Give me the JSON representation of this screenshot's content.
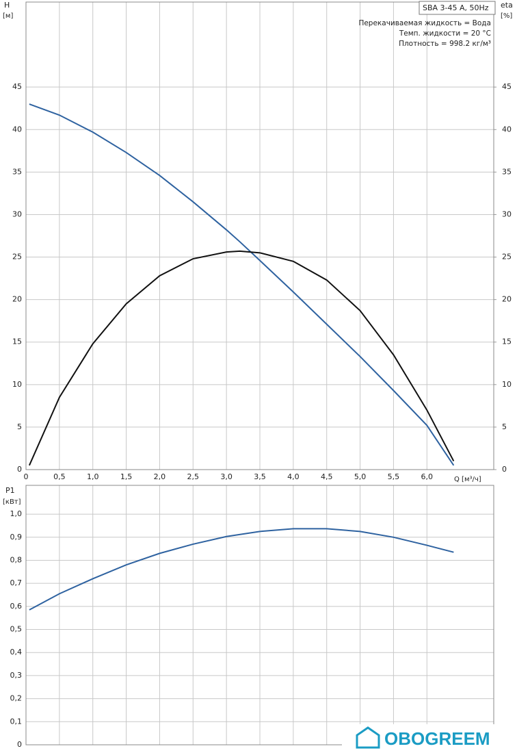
{
  "chart_data": [
    {
      "type": "line",
      "title": "SBA 3-45 A, 50Hz",
      "annotations": [
        "Перекачиваемая жидкость = Вода",
        "Темп. жидкости = 20 °C",
        "Плотность = 998.2 кг/м³"
      ],
      "y_label": "H",
      "y_unit": "[м]",
      "y2_label": "eta",
      "y2_unit": "[%]",
      "x_label": "Q [м³/ч]",
      "x": [
        0.05,
        0.5,
        1.0,
        1.5,
        2.0,
        2.5,
        3.0,
        3.2,
        3.5,
        4.0,
        4.5,
        5.0,
        5.5,
        6.0,
        6.4
      ],
      "series": [
        {
          "name": "H",
          "color": "#2e62a0",
          "values": [
            43,
            41.7,
            39.7,
            37.3,
            34.6,
            31.5,
            28.2,
            26.8,
            24.6,
            20.9,
            17.1,
            13.3,
            9.3,
            5.2,
            0.5
          ]
        },
        {
          "name": "eta",
          "color": "#111111",
          "axis": "y2",
          "values": [
            0.5,
            8.5,
            14.8,
            19.5,
            22.8,
            24.8,
            25.6,
            25.7,
            25.5,
            24.5,
            22.3,
            18.7,
            13.5,
            7,
            1
          ]
        }
      ],
      "xlim": [
        0,
        7
      ],
      "xticks": [
        0,
        {
          "value": 0.5,
          "label": "0,5"
        },
        {
          "value": 1,
          "label": "1,0"
        },
        {
          "value": 1.5,
          "label": "1,5"
        },
        {
          "value": 2,
          "label": "2,0"
        },
        {
          "value": 2.5,
          "label": "2,5"
        },
        {
          "value": 3,
          "label": "3,0"
        },
        {
          "value": 3.5,
          "label": "3,5"
        },
        {
          "value": 4,
          "label": "4,0"
        },
        {
          "value": 4.5,
          "label": "4,5"
        },
        {
          "value": 5,
          "label": "5,0"
        },
        {
          "value": 5.5,
          "label": "5,5"
        },
        {
          "value": 6,
          "label": "6,0"
        }
      ],
      "ylim": [
        0,
        55
      ],
      "yticks": [
        0,
        5,
        10,
        15,
        20,
        25,
        30,
        35,
        40,
        45
      ],
      "y2lim": [
        0,
        55
      ],
      "y2ticks": [
        0,
        5,
        10,
        15,
        20,
        25,
        30,
        35,
        40,
        45
      ],
      "grid": true
    },
    {
      "type": "line",
      "y_label": "P1",
      "y_unit": "[кВт]",
      "x": [
        0.05,
        0.5,
        1.0,
        1.5,
        2.0,
        2.5,
        3.0,
        3.5,
        4.0,
        4.5,
        5.0,
        5.5,
        6.0,
        6.4
      ],
      "series": [
        {
          "name": "P1",
          "color": "#2e62a0",
          "values": [
            0.585,
            0.655,
            0.72,
            0.78,
            0.83,
            0.87,
            0.903,
            0.925,
            0.937,
            0.937,
            0.925,
            0.9,
            0.865,
            0.835
          ]
        }
      ],
      "xlim": [
        0,
        7
      ],
      "ylim": [
        0,
        1.125
      ],
      "yticks": [
        0,
        {
          "value": 0.1,
          "label": "0,1"
        },
        {
          "value": 0.2,
          "label": "0,2"
        },
        {
          "value": 0.3,
          "label": "0,3"
        },
        {
          "value": 0.4,
          "label": "0,4"
        },
        {
          "value": 0.5,
          "label": "0,5"
        },
        {
          "value": 0.6,
          "label": "0,6"
        },
        {
          "value": 0.7,
          "label": "0,7"
        },
        {
          "value": 0.8,
          "label": "0,8"
        },
        {
          "value": 0.9,
          "label": "0,9"
        },
        {
          "value": 1,
          "label": "1,0"
        }
      ],
      "grid": true
    }
  ],
  "watermark": "OBOGREEM"
}
